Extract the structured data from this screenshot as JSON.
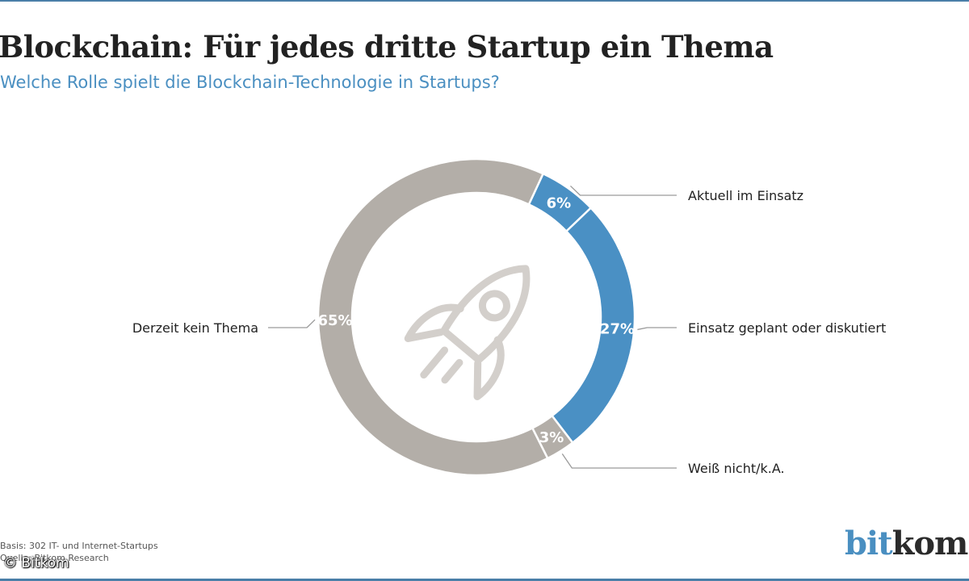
{
  "title": "Blockchain: Für jedes dritte Startup ein Thema",
  "subtitle": "Welche Rolle spielt die Blockchain-Technologie in Startups?",
  "footnote": {
    "basis": "Basis: 302 IT- und Internet-Startups",
    "source": "Quelle: Bitkom Research"
  },
  "copyright": "© Bitkom",
  "logo": {
    "part1": "bit",
    "part2": "kom"
  },
  "center_icon": "rocket-icon",
  "colors": {
    "accent": "#4a90c4",
    "neutral": "#b3aea8",
    "text": "#222222",
    "subtitle": "#4a8fc1"
  },
  "chart_data": {
    "type": "pie",
    "donut": true,
    "title": "Blockchain: Für jedes dritte Startup ein Thema",
    "subtitle": "Welche Rolle spielt die Blockchain-Technologie in Startups?",
    "slices": [
      {
        "label": "Aktuell im Einsatz",
        "value": 6,
        "display": "6%",
        "color": "#4a90c4"
      },
      {
        "label": "Einsatz geplant oder diskutiert",
        "value": 27,
        "display": "27%",
        "color": "#4a90c4"
      },
      {
        "label": "Weiß nicht/k.A.",
        "value": 3,
        "display": "3%",
        "color": "#b3aea8"
      },
      {
        "label": "Derzeit kein Thema",
        "value": 65,
        "display": "65%",
        "color": "#b3aea8"
      }
    ]
  }
}
